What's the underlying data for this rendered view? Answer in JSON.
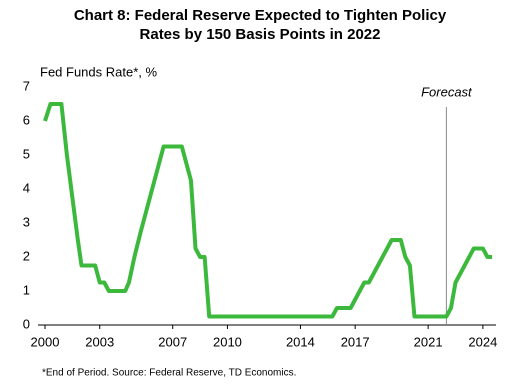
{
  "chart_data": {
    "type": "line",
    "title": "Chart 8: Federal Reserve Expected to Tighten Policy Rates by 150 Basis Points in 2022",
    "y_label": "Fed Funds Rate*, %",
    "annotation": "Forecast",
    "forecast_x": 2022,
    "footnote": "*End of Period. Source: Federal Reserve, TD Economics.",
    "x": [
      2000,
      2000.3,
      2000.9,
      2001.2,
      2001.5,
      2001.8,
      2002,
      2002.75,
      2003,
      2003.25,
      2003.5,
      2004.4,
      2004.6,
      2004.9,
      2005.25,
      2005.5,
      2005.75,
      2006.25,
      2006.5,
      2007.5,
      2007.75,
      2008,
      2008.25,
      2008.5,
      2008.75,
      2009,
      2015.75,
      2016,
      2016.75,
      2017,
      2017.25,
      2017.5,
      2017.75,
      2018,
      2018.25,
      2018.5,
      2018.75,
      2019,
      2019.5,
      2019.75,
      2020,
      2020.25,
      2022,
      2022.25,
      2022.5,
      2022.75,
      2023.25,
      2023.5,
      2024,
      2024.25,
      2024.5
    ],
    "series": [
      {
        "name": "Fed Funds Rate",
        "color": "#3cb93c",
        "values": [
          6.0,
          6.5,
          6.5,
          5.0,
          3.75,
          2.5,
          1.75,
          1.75,
          1.25,
          1.25,
          1.0,
          1.0,
          1.25,
          2.0,
          2.75,
          3.25,
          3.75,
          4.75,
          5.25,
          5.25,
          4.75,
          4.25,
          2.25,
          2.0,
          2.0,
          0.25,
          0.25,
          0.5,
          0.5,
          0.75,
          1.0,
          1.25,
          1.25,
          1.5,
          1.75,
          2.0,
          2.25,
          2.5,
          2.5,
          2.0,
          1.75,
          0.25,
          0.25,
          0.5,
          1.25,
          1.5,
          2.0,
          2.25,
          2.25,
          2.0,
          2.0
        ]
      }
    ],
    "xlim": [
      2000,
      2024.5
    ],
    "xticks": [
      2000,
      2003,
      2007,
      2010,
      2014,
      2017,
      2021,
      2024
    ],
    "ylim": [
      0,
      7
    ],
    "yticks": [
      0,
      1,
      2,
      3,
      4,
      5,
      6,
      7
    ]
  }
}
